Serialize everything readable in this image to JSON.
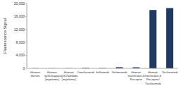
{
  "chart_data": {
    "type": "bar",
    "y_label": "Fluorescence Signal",
    "categories": [
      "Human Serum",
      "Human IgG1/kappa (myeloma)",
      "Human IgG1/lambda (myeloma)",
      "Omalizumab",
      "Infliximab",
      "Golimumab",
      "Human Interleukin-6 Receptor",
      "Human Interleukin-6 Receptor/ Tocilizumab",
      "Tocilizumab"
    ],
    "values": [
      60,
      50,
      60,
      150,
      100,
      350,
      320,
      18000,
      18600
    ],
    "color": "#1f3a60",
    "ylim": [
      0,
      20000
    ],
    "yticks": [
      0,
      {
        "value": 4000,
        "label": "4,000"
      },
      {
        "value": 8000,
        "label": "8,000"
      },
      {
        "value": 12000,
        "label": "12,000"
      },
      {
        "value": 16000,
        "label": "16,000"
      },
      {
        "value": 20000,
        "label": "20,000"
      }
    ],
    "grid": false
  }
}
